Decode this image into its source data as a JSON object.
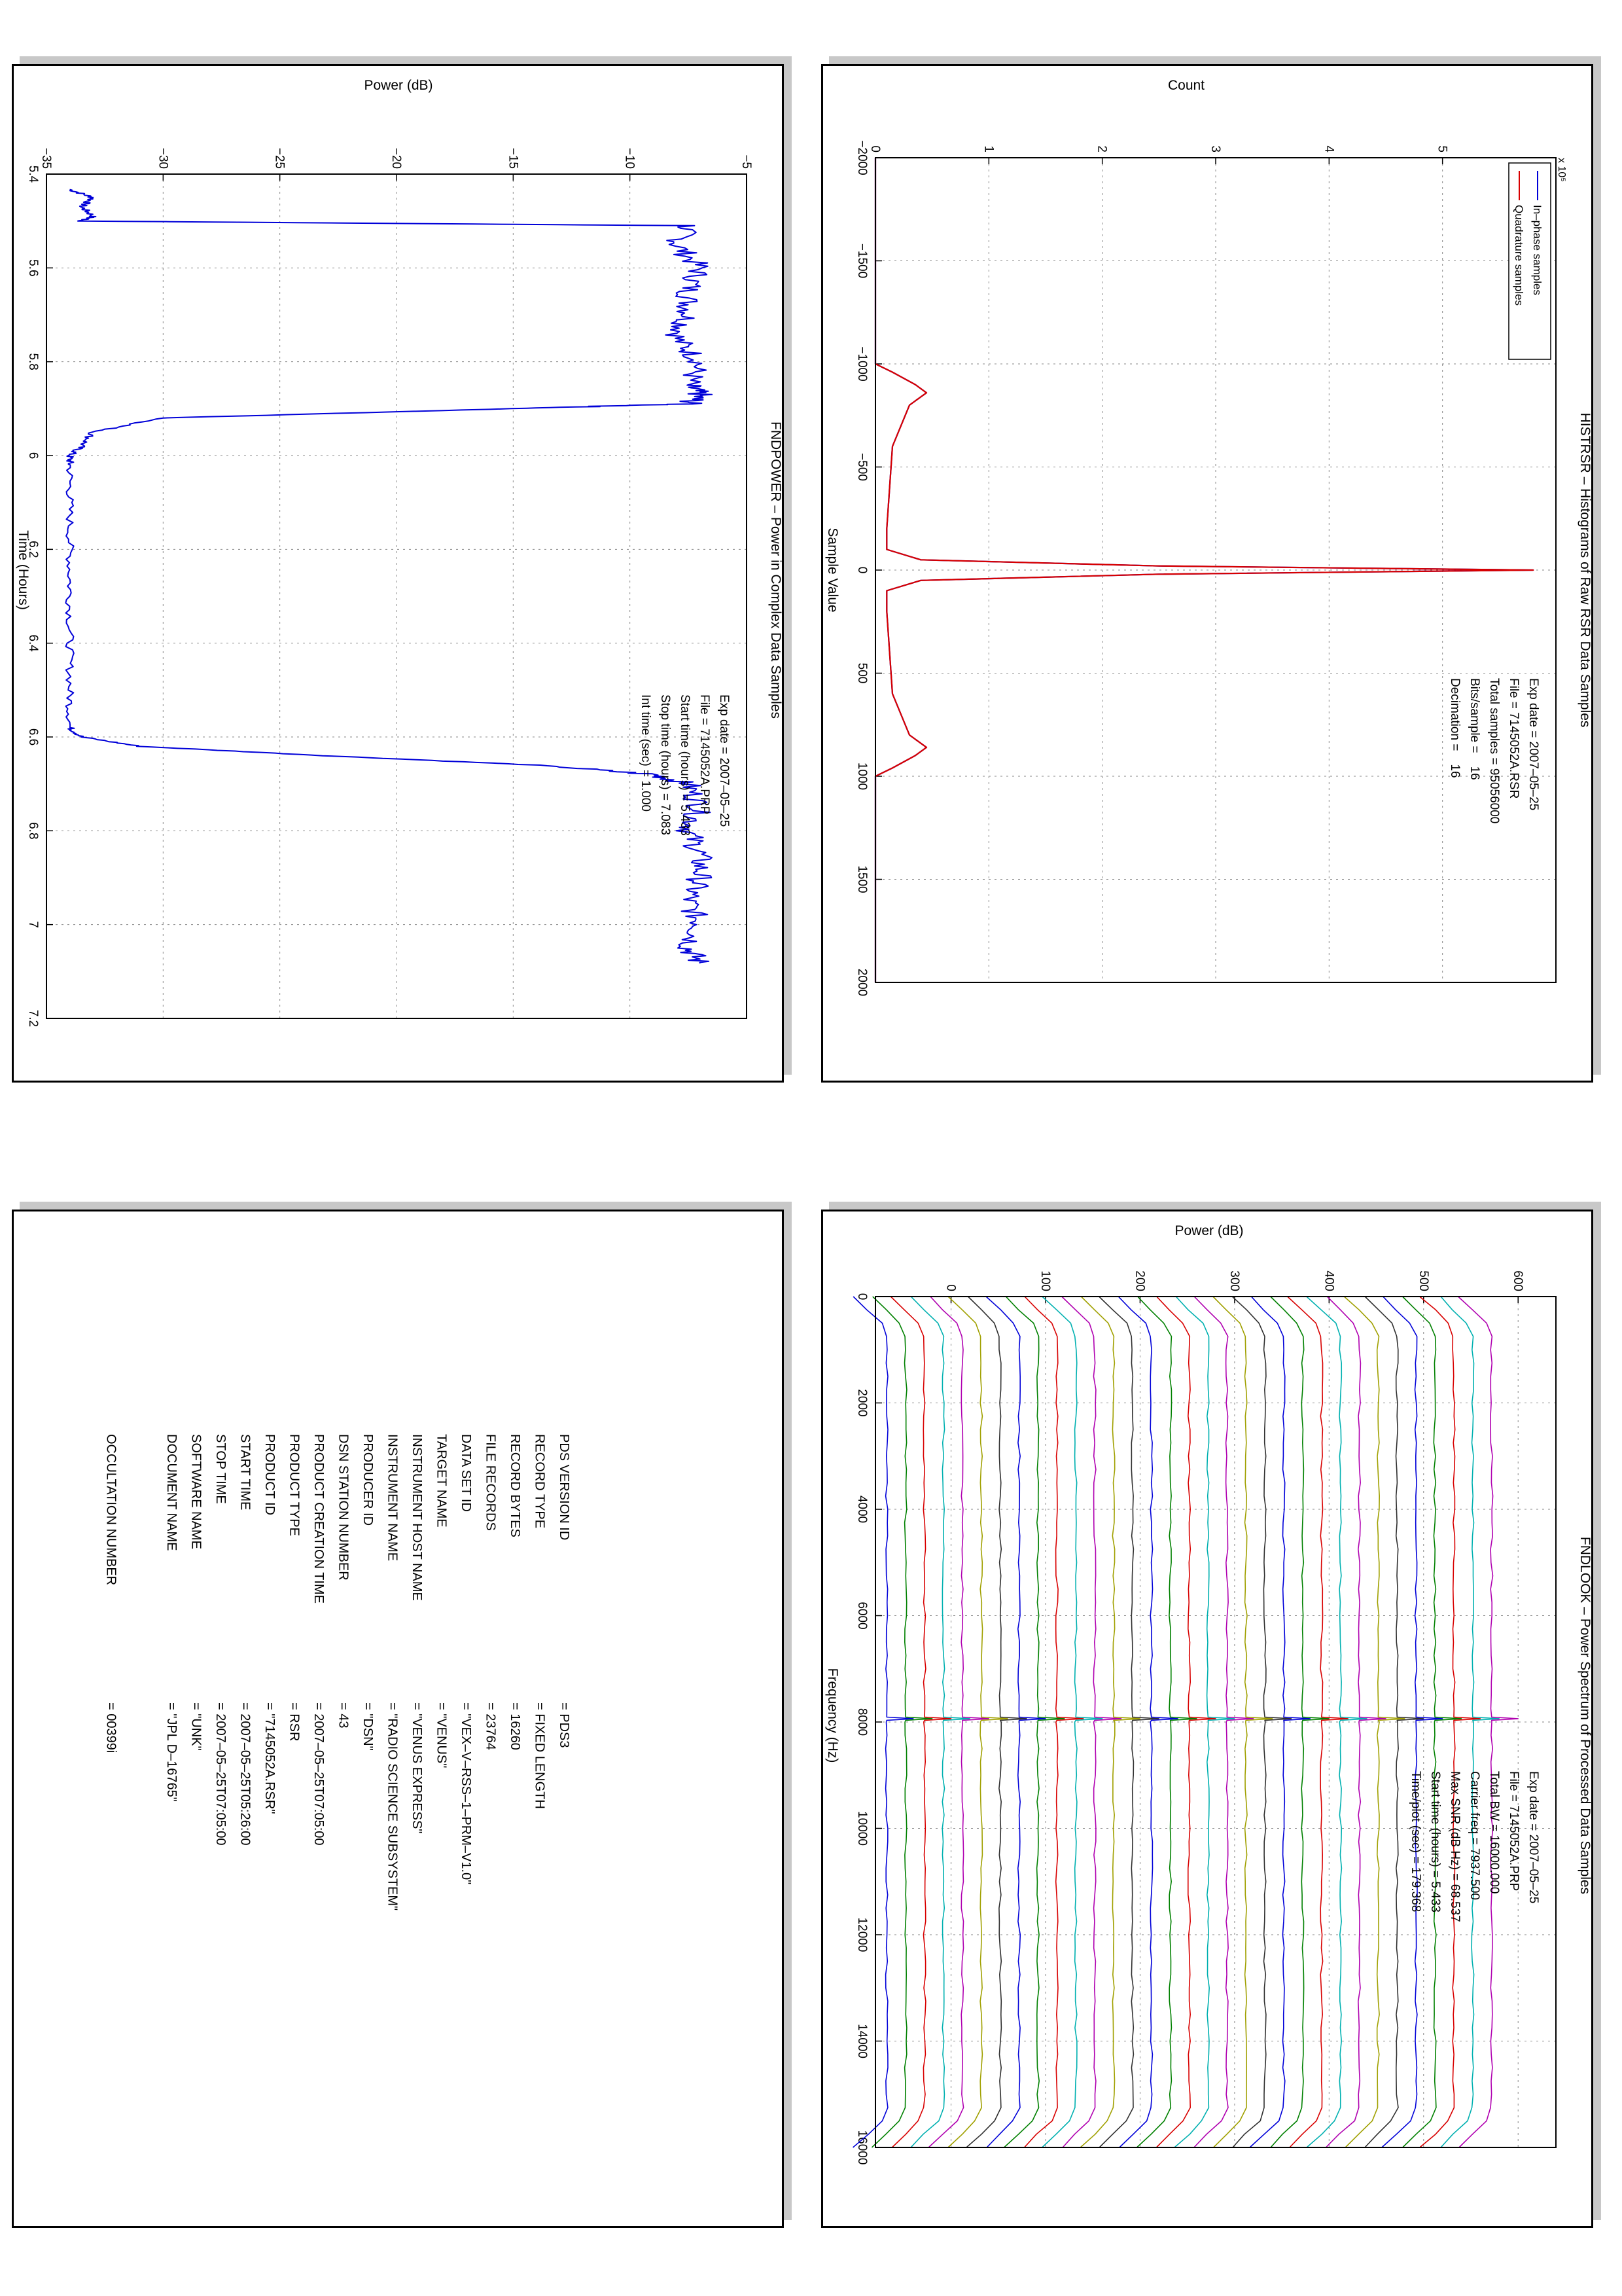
{
  "colors": {
    "blue": "#0000d8",
    "red": "#d80000",
    "frame": "#000000",
    "shadow": "#c8c8c8",
    "grid": "#8a8a8a",
    "findlook_palette": [
      "#0000d8",
      "#008000",
      "#d80000",
      "#00b0b0",
      "#b000b0",
      "#a0a000",
      "#303030"
    ]
  },
  "histrsr": {
    "title": "HISTRSR – Histograms of Raw RSR Data Samples",
    "exponent_label": "x 10⁵",
    "info": [
      {
        "label": "Exp date = ",
        "value": "2007–05–25"
      },
      {
        "label": "File = ",
        "value": "7145052A.RSR"
      },
      {
        "label": "Total samples = ",
        "value": "95056000"
      },
      {
        "label": "Bits/sample     =",
        "value": "16"
      },
      {
        "label": "Decimation     =",
        "value": "16"
      }
    ],
    "legend": [
      "In–phase samples",
      "Quadrature samples"
    ]
  },
  "findpower": {
    "title": "FNDPOWER – Power in Complex Data Samples",
    "info": [
      {
        "label": "Exp date = ",
        "value": "2007–05–25"
      },
      {
        "label": "File = ",
        "value": "7145052A.PRP"
      },
      {
        "label": "Start time (hours) = ",
        "value": "5.433"
      },
      {
        "label": "Stop time (hours) = ",
        "value": "7.083"
      },
      {
        "label": "Int time (sec) = ",
        "value": "1.000"
      }
    ]
  },
  "findlook": {
    "title": "FNDLOOK – Power Spectrum of Processed Data Samples",
    "info": [
      {
        "label": "Exp date = ",
        "value": "2007–05–25"
      },
      {
        "label": "File = ",
        "value": "7145052A.PRP"
      },
      {
        "label": "Total BW = ",
        "value": "16000.000"
      },
      {
        "label": "Carrier freq = ",
        "value": "7937.500"
      },
      {
        "label": "Max SNR (dB Hz) = ",
        "value": "68.537"
      },
      {
        "label": "Start time (hours) = ",
        "value": "5.433"
      },
      {
        "label": "Time/plot (sec) = ",
        "value": "179.368"
      }
    ]
  },
  "label_table": {
    "rows": [
      {
        "key": "PDS VERSION ID",
        "value": "= PDS3"
      },
      {
        "key": "RECORD TYPE",
        "value": "= FIXED LENGTH"
      },
      {
        "key": "RECORD BYTES",
        "value": "= 16260"
      },
      {
        "key": "FILE RECORDS",
        "value": "= 23764"
      },
      {
        "key": "DATA SET ID",
        "value": "= \"VEX–V–RSS–1–PRM–V1.0\""
      },
      {
        "key": "TARGET NAME",
        "value": "= \"VENUS\""
      },
      {
        "key": "INSTRUMENT HOST NAME",
        "value": "= \"VENUS EXPRESS\""
      },
      {
        "key": "INSTRUMENT NAME",
        "value": "= \"RADIO SCIENCE SUBSYSTEM\""
      },
      {
        "key": "PRODUCER ID",
        "value": "= \"DSN\""
      },
      {
        "key": "DSN STATION NUMBER",
        "value": "= 43"
      },
      {
        "key": "PRODUCT CREATION TIME",
        "value": "= 2007–05–25T07:05:00"
      },
      {
        "key": "PRODUCT TYPE",
        "value": "= RSR"
      },
      {
        "key": "PRODUCT ID",
        "value": "= \"7145052A.RSR\""
      },
      {
        "key": "START TIME",
        "value": "= 2007–05–25T05:26:00"
      },
      {
        "key": "STOP TIME",
        "value": "= 2007–05–25T07:05:00"
      },
      {
        "key": "SOFTWARE NAME",
        "value": "= \"UNK\""
      },
      {
        "key": "DOCUMENT NAME",
        "value": "= \"JPL D–16765\""
      },
      {
        "key": "OCCULTATION NUMBER",
        "value": "= 00399i"
      }
    ]
  },
  "chart_data": [
    {
      "id": "histrsr",
      "type": "line",
      "title": "HISTRSR – Histograms of Raw RSR Data Samples",
      "xlabel": "Sample Value",
      "ylabel": "Count",
      "xlim": [
        -2000,
        2000
      ],
      "ylim": [
        0,
        6
      ],
      "y_scale_note": "x 10⁵",
      "xticks": [
        "−2000",
        "−1500",
        "−1000",
        "−500",
        "0",
        "500",
        "1000",
        "1500",
        "2000"
      ],
      "yticks": [
        "0",
        "1",
        "2",
        "3",
        "4",
        "5"
      ],
      "grid": true,
      "legend_position": "top-right",
      "series": [
        {
          "name": "In–phase samples",
          "color": "#0000d8",
          "x": [
            -2000,
            -1000,
            -960,
            -900,
            -860,
            -800,
            -600,
            -200,
            -100,
            -50,
            -20,
            0,
            20,
            50,
            100,
            200,
            600,
            800,
            860,
            900,
            960,
            1000,
            2000
          ],
          "y": [
            0,
            0,
            0.15,
            0.35,
            0.45,
            0.3,
            0.15,
            0.1,
            0.1,
            0.4,
            2.5,
            5.8,
            2.5,
            0.4,
            0.1,
            0.1,
            0.15,
            0.3,
            0.45,
            0.35,
            0.15,
            0,
            0
          ]
        },
        {
          "name": "Quadrature samples",
          "color": "#d80000",
          "x": [
            -2000,
            -1000,
            -960,
            -900,
            -860,
            -800,
            -600,
            -200,
            -100,
            -50,
            -20,
            0,
            20,
            50,
            100,
            200,
            600,
            800,
            860,
            900,
            960,
            1000,
            2000
          ],
          "y": [
            0,
            0,
            0.15,
            0.35,
            0.45,
            0.3,
            0.15,
            0.1,
            0.1,
            0.4,
            2.5,
            5.8,
            2.5,
            0.4,
            0.1,
            0.1,
            0.15,
            0.3,
            0.45,
            0.35,
            0.15,
            0,
            0
          ]
        }
      ]
    },
    {
      "id": "findpower",
      "type": "line",
      "title": "FNDPOWER – Power in Complex Data Samples",
      "xlabel": "Time (Hours)",
      "ylabel": "Power (dB)",
      "xlim": [
        5.4,
        7.2
      ],
      "ylim": [
        -35,
        -5
      ],
      "xticks": [
        "5.4",
        "5.6",
        "5.8",
        "6",
        "6.2",
        "6.4",
        "6.6",
        "6.8",
        "7",
        "7.2"
      ],
      "yticks": [
        "−35",
        "−30",
        "−25",
        "−20",
        "−15",
        "−10",
        "−5"
      ],
      "grid": true,
      "series": [
        {
          "color": "#0000d8",
          "x": [
            5.433,
            5.45,
            5.47,
            5.49,
            5.5,
            5.51,
            5.55,
            5.6,
            5.65,
            5.7,
            5.75,
            5.8,
            5.85,
            5.87,
            5.89,
            5.9,
            5.92,
            5.95,
            5.98,
            6.0,
            6.02,
            6.1,
            6.2,
            6.3,
            6.4,
            6.5,
            6.58,
            6.6,
            6.62,
            6.64,
            6.66,
            6.68,
            6.7,
            6.75,
            6.8,
            6.85,
            6.9,
            6.95,
            7.0,
            7.05,
            7.083
          ],
          "y": [
            -34,
            -33,
            -33.5,
            -33,
            -33.5,
            -7.5,
            -8,
            -7,
            -7.5,
            -7.5,
            -8,
            -7,
            -7.5,
            -7,
            -7.5,
            -15,
            -30,
            -33,
            -33.5,
            -34,
            -34,
            -34,
            -34,
            -34,
            -34,
            -34,
            -34,
            -33.5,
            -31,
            -23,
            -14,
            -9,
            -7.5,
            -7,
            -7.5,
            -7,
            -7,
            -7.5,
            -7,
            -7.5,
            -7
          ]
        }
      ]
    },
    {
      "id": "findlook",
      "type": "line",
      "title": "FNDLOOK – Power Spectrum of Processed Data Samples",
      "xlabel": "Frequency (Hz)",
      "ylabel": "Power (dB)",
      "xlim": [
        0,
        16000
      ],
      "ylim": [
        -80,
        640
      ],
      "xticks": [
        "0",
        "2000",
        "4000",
        "6000",
        "8000",
        "10000",
        "12000",
        "14000",
        "16000"
      ],
      "yticks": [
        "0",
        "100",
        "200",
        "300",
        "400",
        "500",
        "600"
      ],
      "grid": true,
      "carrier_freq": 7937.5,
      "trace_count": 33,
      "trace_offset_start": -68,
      "trace_offset_step": 20
    }
  ]
}
